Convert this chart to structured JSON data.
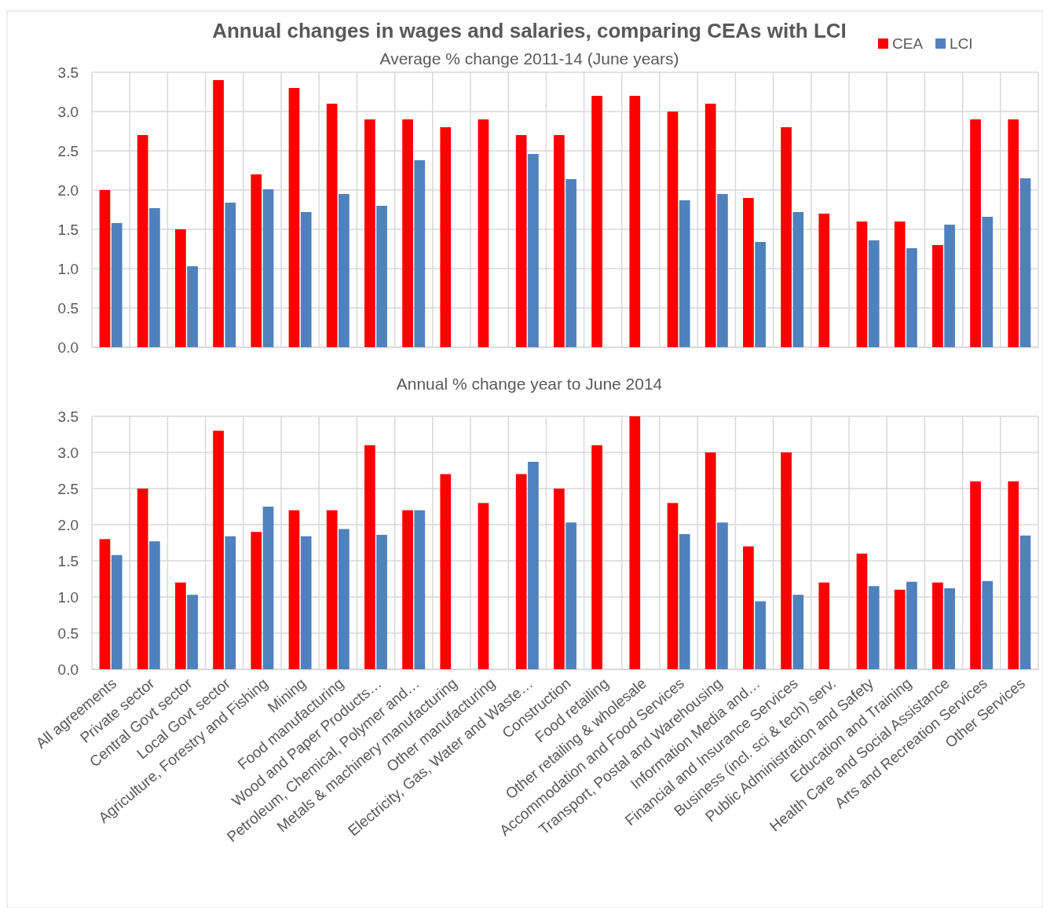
{
  "chart_data": [
    {
      "type": "bar",
      "title": "Annual changes in wages and salaries, comparing CEAs with LCI",
      "subtitle": "Average % change 2011-14 (June years)",
      "categories": [
        null,
        null,
        null,
        null,
        null,
        null,
        null,
        null,
        null,
        null,
        null,
        null,
        null,
        null,
        null,
        null,
        null,
        null,
        null,
        null,
        null,
        null,
        null,
        null,
        null
      ],
      "series": [
        {
          "name": "CEA",
          "color": "#ff0000",
          "values": [
            2.0,
            2.7,
            1.5,
            3.4,
            2.2,
            3.3,
            3.1,
            2.9,
            2.9,
            2.8,
            2.9,
            2.7,
            2.7,
            3.2,
            3.2,
            3.0,
            3.1,
            1.9,
            2.8,
            1.7,
            1.6,
            1.6,
            1.3,
            2.9,
            2.9
          ]
        },
        {
          "name": "LCI",
          "color": "#4f81bd",
          "values": [
            1.58,
            1.77,
            1.03,
            1.84,
            2.01,
            1.72,
            1.95,
            1.8,
            2.38,
            null,
            null,
            2.46,
            2.14,
            null,
            null,
            1.87,
            1.95,
            1.34,
            1.72,
            null,
            1.36,
            1.26,
            1.56,
            1.66,
            2.15
          ]
        }
      ],
      "ylim": [
        0,
        3.5
      ],
      "yticks": [
        {
          "value": 0,
          "label": "0.0"
        },
        {
          "value": 0.5,
          "label": "0.5"
        },
        {
          "value": 1,
          "label": "1.0"
        },
        {
          "value": 1.5,
          "label": "1.5"
        },
        {
          "value": 2,
          "label": "2.0"
        },
        {
          "value": 2.5,
          "label": "2.5"
        },
        {
          "value": 3,
          "label": "3.0"
        },
        {
          "value": 3.5,
          "label": "3.5"
        }
      ],
      "grid": true,
      "legend": "top right",
      "tick_labels": "y"
    },
    {
      "type": "bar",
      "subtitle": "Annual % change year to June 2014",
      "categories": [
        "All agreements",
        "Private sector",
        "Central Govt sector",
        "Local Govt sector",
        "Agriculture, Forestry and Fishing",
        "Mining",
        "Food manufacturing",
        "Wood and Paper Products…",
        "Petroleum, Chemical, Polymer and…",
        "Metals & machinery manufacturing",
        "Other manufacturing",
        "Electricity, Gas, Water and Waste…",
        "Construction",
        "Food retailing",
        "Other retailing & wholesale",
        "Accommodation and Food Services",
        "Transport, Postal and Warehousing",
        "Information Media and…",
        "Financial and Insurance Services",
        "Business (incl. sci & tech) serv.",
        "Public Administration and Safety",
        "Education and Training",
        "Health Care and Social Assistance",
        "Arts and Recreation Services",
        "Other Services"
      ],
      "series": [
        {
          "color": "#ff0000",
          "values": [
            1.8,
            2.5,
            1.2,
            3.3,
            1.9,
            2.2,
            2.2,
            3.1,
            2.2,
            2.7,
            2.3,
            2.7,
            2.5,
            3.1,
            3.5,
            2.3,
            3.0,
            1.7,
            3.0,
            1.2,
            1.6,
            1.1,
            1.2,
            2.6,
            2.6
          ]
        },
        {
          "color": "#4f81bd",
          "values": [
            1.58,
            1.77,
            1.03,
            1.84,
            2.25,
            1.84,
            1.94,
            1.86,
            2.2,
            null,
            null,
            2.87,
            2.03,
            null,
            null,
            1.87,
            2.03,
            0.94,
            1.03,
            null,
            1.15,
            1.21,
            1.12,
            1.22,
            1.85
          ]
        }
      ],
      "ylim": [
        0,
        3.5
      ],
      "yticks": [
        {
          "value": 0,
          "label": "0.0"
        },
        {
          "value": 0.5,
          "label": "0.5"
        },
        {
          "value": 1,
          "label": "1.0"
        },
        {
          "value": 1.5,
          "label": "1.5"
        },
        {
          "value": 2,
          "label": "2.0"
        },
        {
          "value": 2.5,
          "label": "2.5"
        },
        {
          "value": 3,
          "label": "3.0"
        },
        {
          "value": 3.5,
          "label": "3.5"
        }
      ],
      "grid": true,
      "legend": false
    }
  ]
}
